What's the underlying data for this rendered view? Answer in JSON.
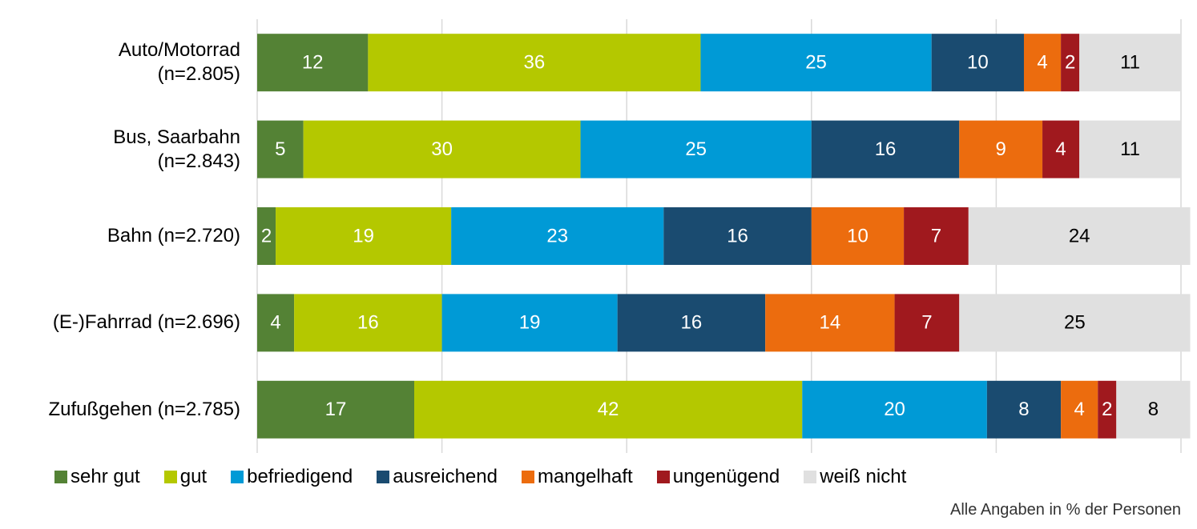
{
  "chart_data": {
    "type": "stacked_barh",
    "categories": [
      "Auto/Motorrad\n(n=2.805)",
      "Bus, Saarbahn\n(n=2.843)",
      "Bahn (n=2.720)",
      "(E-)Fahrrad (n=2.696)",
      "Zufußgehen (n=2.785)"
    ],
    "series": [
      {
        "name": "sehr gut",
        "color": "#548235",
        "label_color": "#ffffff",
        "values": [
          12,
          5,
          2,
          4,
          17
        ]
      },
      {
        "name": "gut",
        "color": "#b4c800",
        "label_color": "#ffffff",
        "values": [
          36,
          30,
          19,
          16,
          42
        ]
      },
      {
        "name": "befriedigend",
        "color": "#009ad6",
        "label_color": "#ffffff",
        "values": [
          25,
          25,
          23,
          19,
          20
        ]
      },
      {
        "name": "ausreichend",
        "color": "#1a4b70",
        "label_color": "#ffffff",
        "values": [
          10,
          16,
          16,
          16,
          8
        ]
      },
      {
        "name": "mangelhaft",
        "color": "#ec6c0e",
        "label_color": "#ffffff",
        "values": [
          4,
          9,
          10,
          14,
          4
        ]
      },
      {
        "name": "ungenügend",
        "color": "#a0191e",
        "label_color": "#ffffff",
        "values": [
          2,
          4,
          7,
          7,
          2
        ]
      },
      {
        "name": "weiß nicht",
        "color": "#e0e0e0",
        "label_color": "#000000",
        "values": [
          11,
          11,
          24,
          25,
          8
        ]
      }
    ],
    "xlim": [
      0,
      100
    ],
    "xticks": [
      0,
      20,
      40,
      60,
      80,
      100
    ],
    "grid": true,
    "note": "Alle Angaben in % der Personen"
  }
}
